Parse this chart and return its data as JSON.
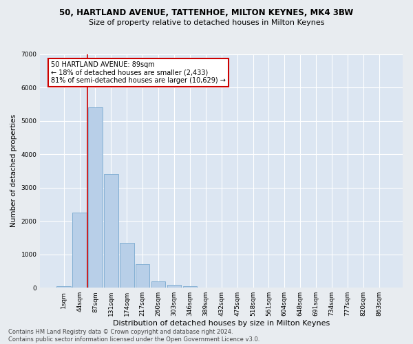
{
  "title1": "50, HARTLAND AVENUE, TATTENHOE, MILTON KEYNES, MK4 3BW",
  "title2": "Size of property relative to detached houses in Milton Keynes",
  "xlabel": "Distribution of detached houses by size in Milton Keynes",
  "ylabel": "Number of detached properties",
  "footnote": "Contains HM Land Registry data © Crown copyright and database right 2024.\nContains public sector information licensed under the Open Government Licence v3.0.",
  "bar_color": "#b8cfe8",
  "bar_edge_color": "#7aaad0",
  "bg_color": "#dce6f2",
  "grid_color": "#ffffff",
  "fig_bg_color": "#e8ecf0",
  "categories": [
    "1sqm",
    "44sqm",
    "87sqm",
    "131sqm",
    "174sqm",
    "217sqm",
    "260sqm",
    "303sqm",
    "346sqm",
    "389sqm",
    "432sqm",
    "475sqm",
    "518sqm",
    "561sqm",
    "604sqm",
    "648sqm",
    "691sqm",
    "734sqm",
    "777sqm",
    "820sqm",
    "863sqm"
  ],
  "values": [
    50,
    2250,
    5400,
    3400,
    1350,
    700,
    200,
    80,
    50,
    10,
    3,
    1,
    0,
    0,
    0,
    0,
    0,
    0,
    0,
    0,
    0
  ],
  "ylim": [
    0,
    7000
  ],
  "yticks": [
    0,
    1000,
    2000,
    3000,
    4000,
    5000,
    6000,
    7000
  ],
  "vline_idx": 1.5,
  "annotation_title": "50 HARTLAND AVENUE: 89sqm",
  "annotation_line1": "← 18% of detached houses are smaller (2,433)",
  "annotation_line2": "81% of semi-detached houses are larger (10,629) →",
  "annotation_box_color": "#ffffff",
  "annotation_border_color": "#cc0000",
  "vline_color": "#cc0000",
  "title1_fontsize": 8.5,
  "title2_fontsize": 8.0,
  "ylabel_fontsize": 7.5,
  "xlabel_fontsize": 8.0,
  "tick_fontsize": 6.5,
  "annot_fontsize": 7.0,
  "footnote_fontsize": 6.0
}
